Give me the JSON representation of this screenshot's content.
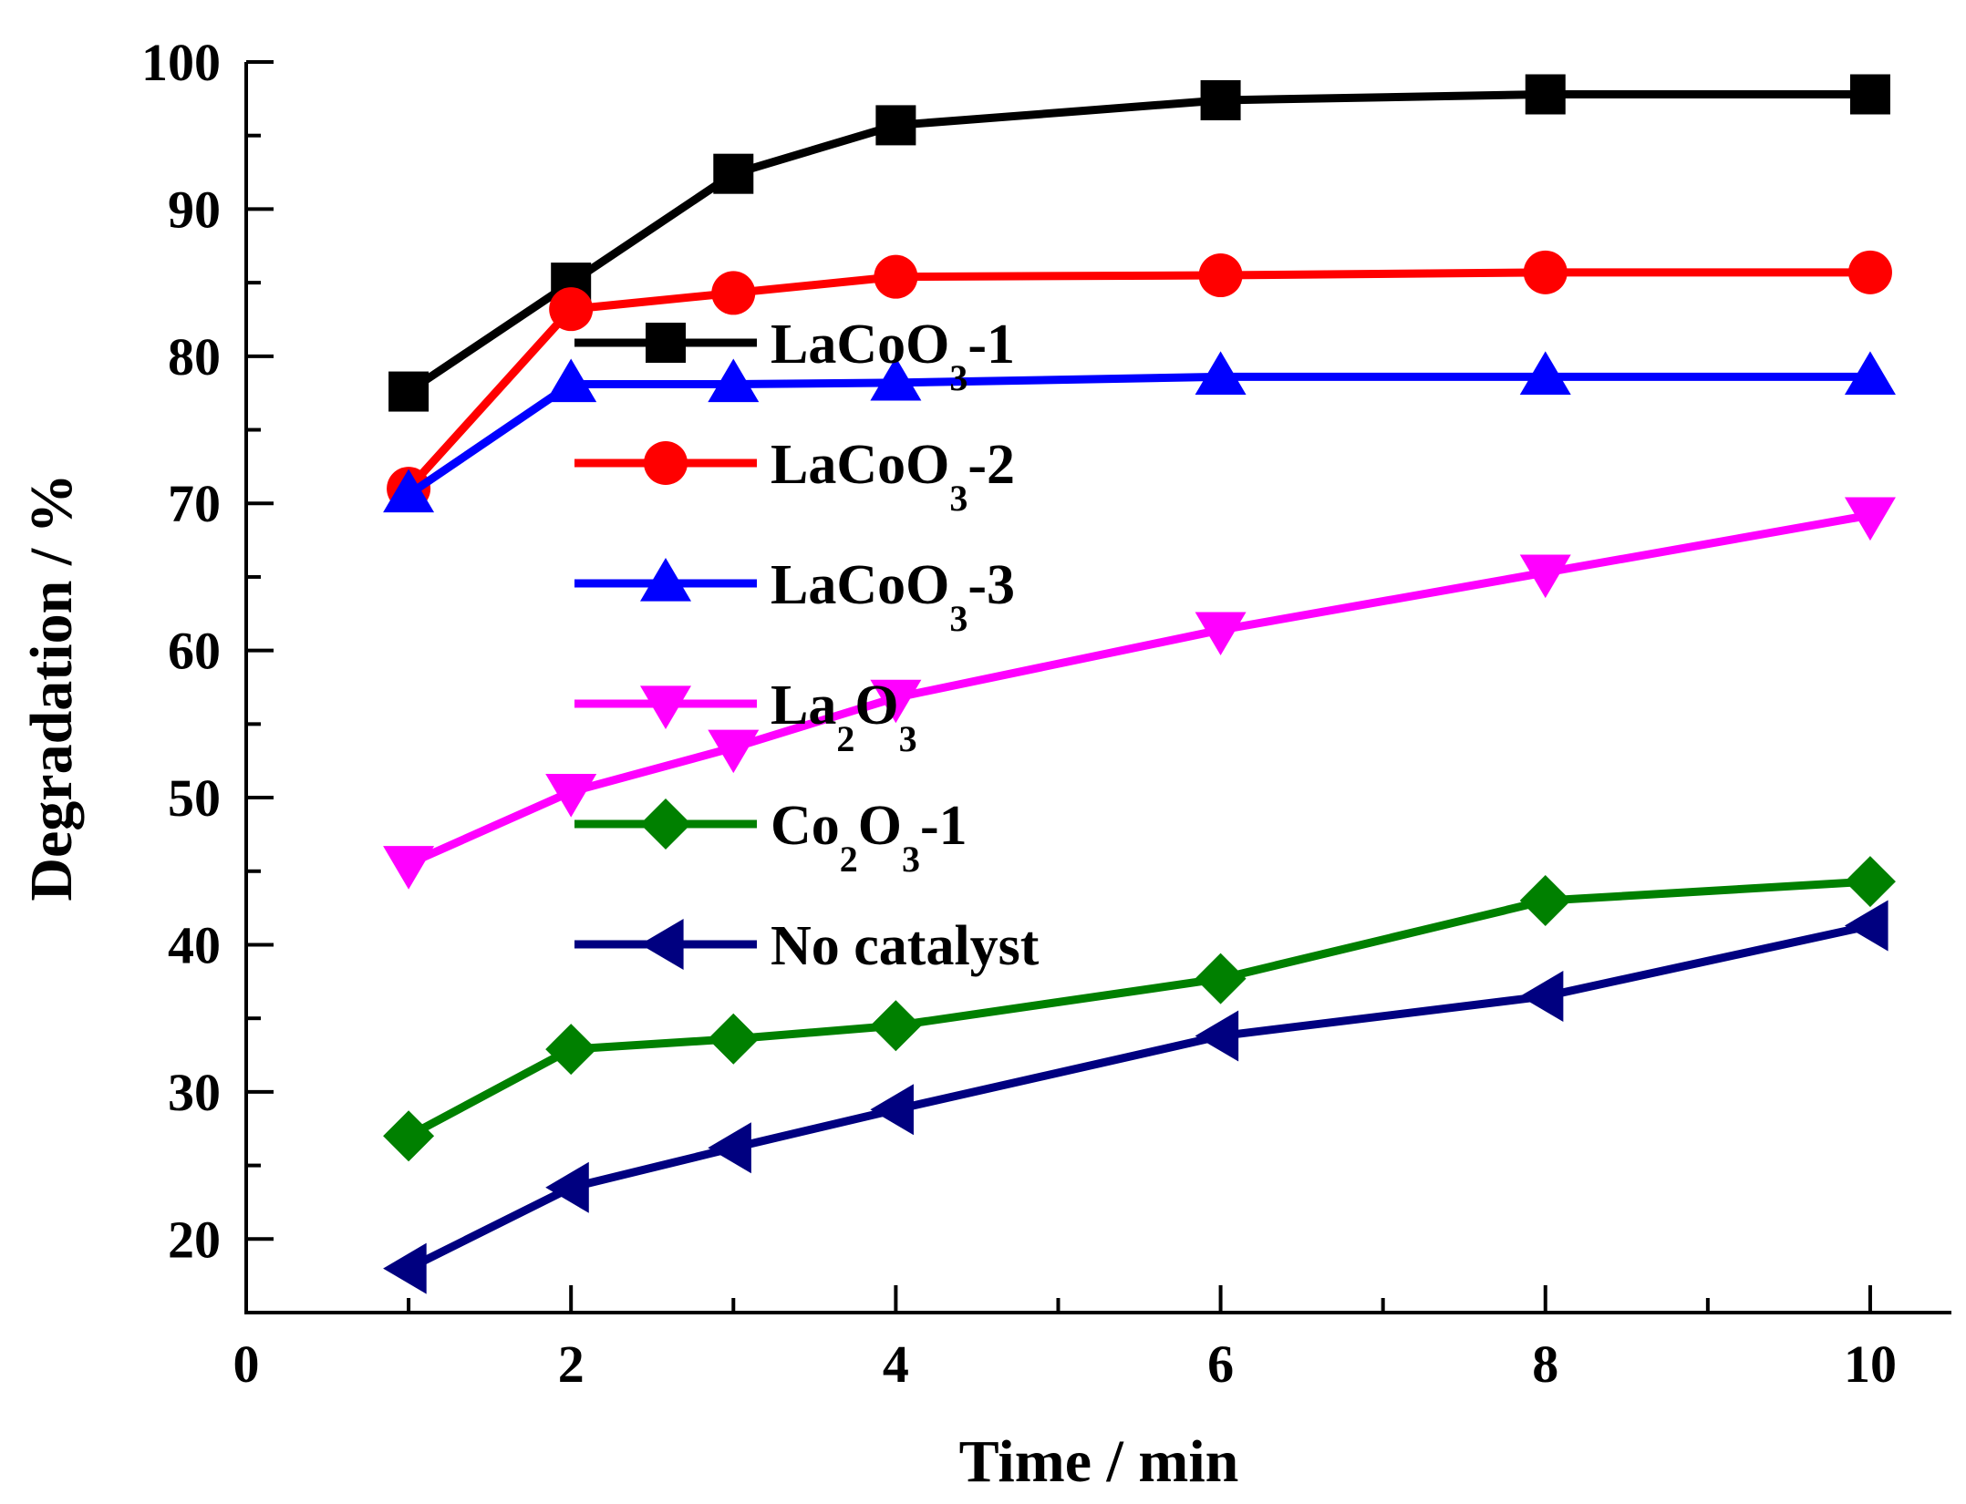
{
  "chart_data": {
    "type": "line",
    "title": "",
    "xlabel": "Time / min",
    "ylabel": "Degradation / %",
    "xlim": [
      0,
      10.5
    ],
    "ylim": [
      15,
      100
    ],
    "x_ticks": [
      0,
      2,
      4,
      6,
      8,
      10
    ],
    "x_tick_labels": [
      "0",
      "2",
      "4",
      "6",
      "8",
      "10"
    ],
    "y_ticks": [
      20,
      30,
      40,
      50,
      60,
      70,
      80,
      90,
      100
    ],
    "y_tick_labels": [
      "20",
      "30",
      "40",
      "50",
      "60",
      "70",
      "80",
      "90",
      "100"
    ],
    "legend_position": "center-left",
    "x": [
      1,
      2,
      3,
      4,
      6,
      8,
      10
    ],
    "series": [
      {
        "name": "LaCoO3-1",
        "legend": {
          "base": "LaCoO",
          "sub": "3",
          "suffix": "-1"
        },
        "color": "#000000",
        "marker": "square",
        "values": [
          77.6,
          85.0,
          92.4,
          95.7,
          97.4,
          97.8,
          97.8
        ]
      },
      {
        "name": "LaCoO3-2",
        "legend": {
          "base": "LaCoO",
          "sub": "3",
          "suffix": "-2"
        },
        "color": "#ff0000",
        "marker": "circle",
        "values": [
          71.0,
          83.2,
          84.3,
          85.4,
          85.5,
          85.7,
          85.7
        ]
      },
      {
        "name": "LaCoO3-3",
        "legend": {
          "base": "LaCoO",
          "sub": "3",
          "suffix": "-3"
        },
        "color": "#0000ff",
        "marker": "triangle-up",
        "values": [
          70.6,
          78.1,
          78.1,
          78.2,
          78.6,
          78.6,
          78.6
        ]
      },
      {
        "name": "La2O3",
        "legend": {
          "base": "La",
          "sub": "2",
          "mid": "O",
          "sub2": "3"
        },
        "color": "#ff00ff",
        "marker": "triangle-down",
        "values": [
          45.5,
          50.4,
          53.4,
          56.8,
          61.4,
          65.3,
          69.2
        ]
      },
      {
        "name": "Co2O3-1",
        "legend": {
          "base": "Co",
          "sub": "2",
          "mid": "O",
          "sub2": "3",
          "suffix": "-1"
        },
        "color": "#008000",
        "marker": "diamond",
        "values": [
          27.0,
          32.9,
          33.6,
          34.5,
          37.7,
          43.0,
          44.3
        ]
      },
      {
        "name": "No catalyst",
        "legend": {
          "base": "No catalyst"
        },
        "color": "#000080",
        "marker": "triangle-left",
        "values": [
          18.0,
          23.5,
          26.2,
          28.8,
          33.8,
          36.5,
          41.3
        ]
      }
    ]
  }
}
